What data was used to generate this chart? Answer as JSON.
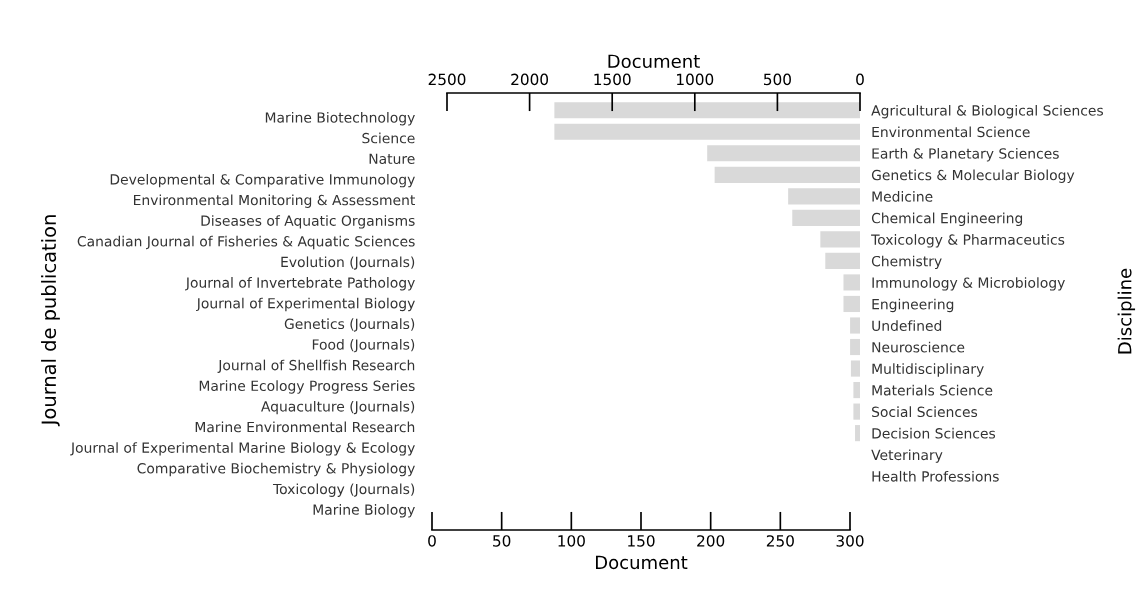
{
  "chart_data": [
    {
      "type": "bar",
      "orientation": "horizontal",
      "xlabel": "Document",
      "ylabel": "Journal de publication",
      "categories": [
        "Marine Biotechnology",
        "Science",
        "Nature",
        "Developmental & Comparative Immunology",
        "Environmental Monitoring & Assessment",
        "Diseases of Aquatic Organisms",
        "Canadian Journal of Fisheries & Aquatic Sciences",
        "Evolution (Journals)",
        "Journal of Invertebrate Pathology",
        "Journal of Experimental Biology",
        "Genetics (Journals)",
        "Food (Journals)",
        "Journal of Shellfish Research",
        "Marine Ecology Progress Series",
        "Aquaculture (Journals)",
        "Marine Environmental Research",
        "Journal of Experimental Marine Biology & Ecology",
        "Comparative Biochemistry & Physiology",
        "Toxicology (Journals)",
        "Marine Biology"
      ],
      "values": [
        null,
        null,
        null,
        null,
        null,
        null,
        null,
        null,
        null,
        null,
        null,
        null,
        null,
        null,
        null,
        null,
        null,
        null,
        null,
        null
      ],
      "color": "#d9d9d9",
      "xlim": [
        0,
        300
      ],
      "xticks": [
        0,
        50,
        100,
        150,
        200,
        250,
        300
      ],
      "grid": false
    },
    {
      "type": "bar",
      "orientation": "horizontal",
      "xlabel": "Document",
      "ylabel": "Discipline",
      "categories": [
        "Agricultural & Biological Sciences",
        "Environmental Science",
        "Earth & Planetary Sciences",
        "Genetics & Molecular Biology",
        "Medicine",
        "Chemical Engineering",
        "Toxicology & Pharmaceutics",
        "Chemistry",
        "Immunology & Microbiology",
        "Engineering",
        "Undefined",
        "Neuroscience",
        "Multidisciplinary",
        "Materials Science",
        "Social Sciences",
        "Decision Sciences",
        "Veterinary",
        "Health Professions"
      ],
      "values": [
        1850,
        1850,
        925,
        880,
        435,
        410,
        240,
        210,
        100,
        100,
        60,
        60,
        55,
        40,
        40,
        30,
        null,
        null
      ],
      "color": "#d9d9d9",
      "xlim": [
        2500,
        0
      ],
      "xticks": [
        2500,
        2000,
        1500,
        1000,
        500,
        0
      ],
      "grid": false
    }
  ]
}
